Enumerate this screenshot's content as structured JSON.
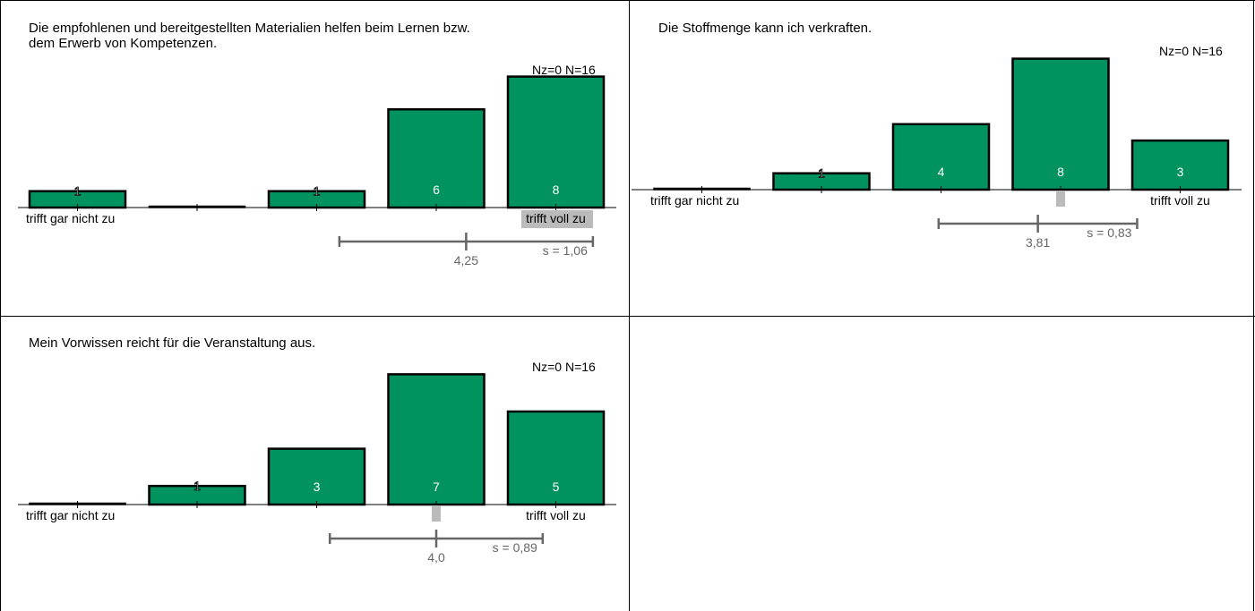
{
  "colors": {
    "bar": "#009360",
    "bar_stroke": "#000000",
    "stat": "#666666",
    "highlight": "#bbbbbb",
    "label_white": "#ffffff"
  },
  "panels": [
    {
      "title": "Die empfohlenen und bereitgestellten Materialien helfen beim Lernen bzw.\ndem Erwerb von Kompetenzen.",
      "stats_n": "Nz=0  N=16",
      "mean_label": "4,25",
      "sd_label": "s = 1,06"
    },
    {
      "title": "Die Stoffmenge kann ich verkraften.",
      "stats_n": "Nz=0  N=16",
      "mean_label": "3,81",
      "sd_label": "s = 0,83"
    },
    {
      "title": "Mein Vorwissen reicht für die Veranstaltung aus.",
      "stats_n": "Nz=0  N=16",
      "mean_label": "4,0",
      "sd_label": "s = 0,89"
    }
  ],
  "chart_data": [
    {
      "type": "bar",
      "categories": [
        "1",
        "2",
        "3",
        "4",
        "5"
      ],
      "values": [
        1,
        0,
        1,
        6,
        8
      ],
      "data_labels": [
        "1",
        "",
        "1",
        "6",
        "8"
      ],
      "left_label": "trifft gar nicht zu",
      "right_label": "trifft voll zu",
      "mean": 4.25,
      "sd": 1.06,
      "median_highlight": 5,
      "ylim": [
        0,
        8
      ]
    },
    {
      "type": "bar",
      "categories": [
        "1",
        "2",
        "3",
        "4",
        "5"
      ],
      "values": [
        0,
        1,
        4,
        8,
        3
      ],
      "data_labels": [
        "",
        "1",
        "4",
        "8",
        "3"
      ],
      "left_label": "trifft gar nicht zu",
      "right_label": "trifft voll zu",
      "mean": 3.81,
      "sd": 0.83,
      "median_highlight": 4,
      "ylim": [
        0,
        8
      ]
    },
    {
      "type": "bar",
      "categories": [
        "1",
        "2",
        "3",
        "4",
        "5"
      ],
      "values": [
        0,
        1,
        3,
        7,
        5
      ],
      "data_labels": [
        "",
        "1",
        "3",
        "7",
        "5"
      ],
      "left_label": "trifft gar nicht zu",
      "right_label": "trifft voll zu",
      "mean": 4.0,
      "sd": 0.89,
      "median_highlight": 4,
      "ylim": [
        0,
        7
      ]
    }
  ]
}
